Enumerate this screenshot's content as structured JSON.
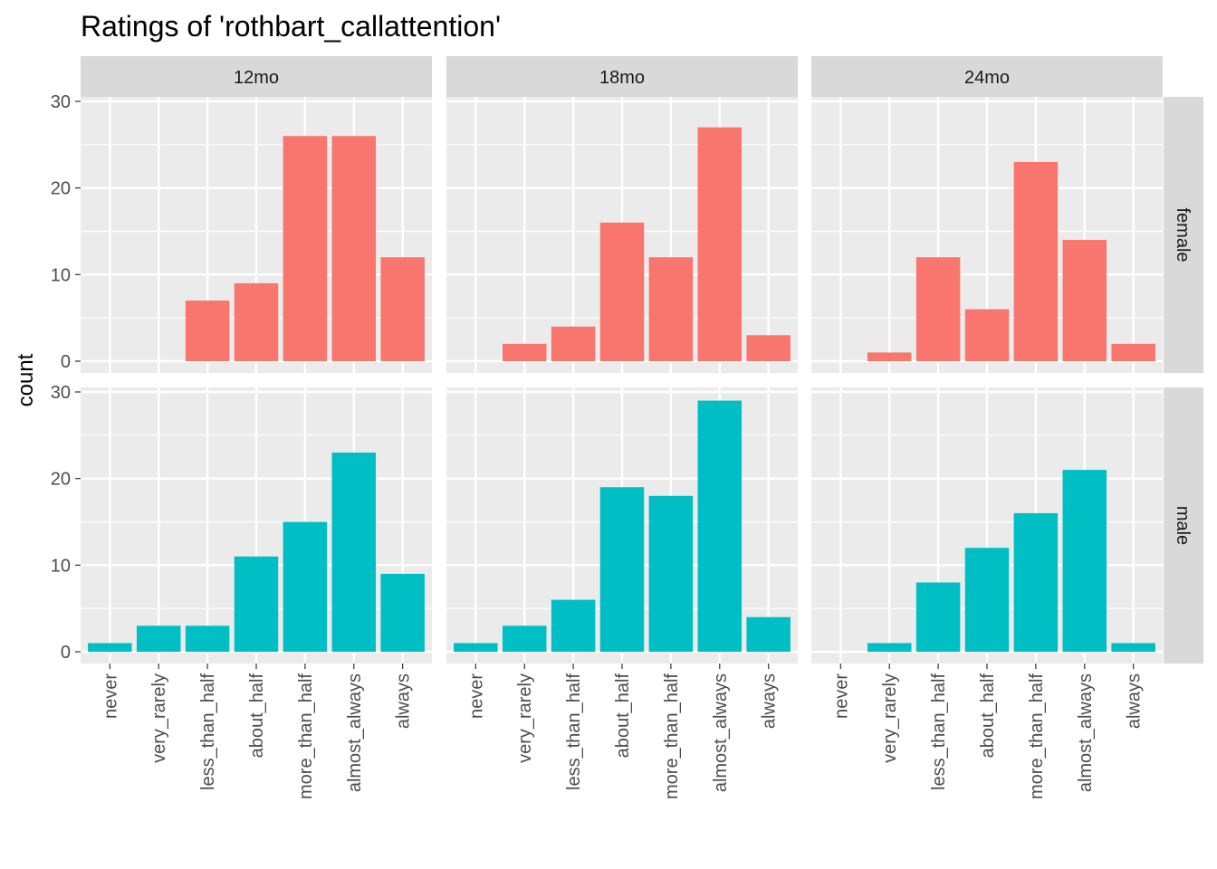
{
  "chart_data": {
    "type": "bar",
    "title": "Ratings of 'rothbart_callattention'",
    "xlabel": "",
    "ylabel": "count",
    "categories": [
      "never",
      "very_rarely",
      "less_than_half",
      "about_half",
      "more_than_half",
      "almost_always",
      "always"
    ],
    "ylim": [
      0,
      30
    ],
    "yticks": [
      0,
      10,
      20,
      30
    ],
    "grid": true,
    "legend": "none",
    "facet_columns": [
      "12mo",
      "18mo",
      "24mo"
    ],
    "facet_rows": [
      "female",
      "male"
    ],
    "colors": {
      "female": "#F8766D",
      "male": "#00BFC4",
      "panel_bg": "#EBEBEB",
      "strip_bg": "#D9D9D9",
      "grid": "#FFFFFF"
    },
    "panels": [
      {
        "row": "female",
        "column": "12mo",
        "values": [
          0,
          0,
          7,
          9,
          26,
          26,
          12
        ]
      },
      {
        "row": "female",
        "column": "18mo",
        "values": [
          0,
          2,
          4,
          16,
          12,
          27,
          3
        ]
      },
      {
        "row": "female",
        "column": "24mo",
        "values": [
          0,
          1,
          12,
          6,
          23,
          14,
          2
        ]
      },
      {
        "row": "male",
        "column": "12mo",
        "values": [
          1,
          3,
          3,
          11,
          15,
          23,
          9
        ]
      },
      {
        "row": "male",
        "column": "18mo",
        "values": [
          1,
          3,
          6,
          19,
          18,
          29,
          4
        ]
      },
      {
        "row": "male",
        "column": "24mo",
        "values": [
          0,
          1,
          8,
          12,
          16,
          21,
          1
        ]
      }
    ]
  }
}
